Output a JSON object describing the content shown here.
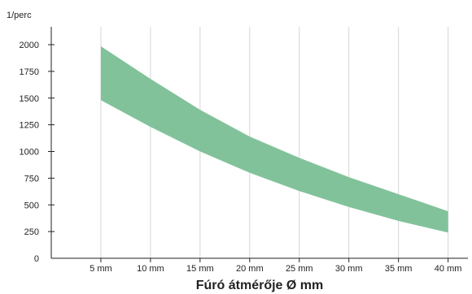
{
  "chart_data": {
    "type": "area",
    "title": "",
    "xlabel": "Fúró átmérője Ø mm",
    "ylabel": "1/perc",
    "x_categories": [
      "5 mm",
      "10 mm",
      "15 mm",
      "20 mm",
      "25 mm",
      "30 mm",
      "35 mm",
      "40 mm"
    ],
    "x_values": [
      5,
      10,
      15,
      20,
      25,
      30,
      35,
      40
    ],
    "xlim": [
      0,
      42
    ],
    "ylim": [
      0,
      2000
    ],
    "y_ticks": [
      0,
      250,
      500,
      750,
      1000,
      1250,
      1500,
      1750,
      2000
    ],
    "y_tick_labels": [
      "0",
      "250",
      "500",
      "750",
      "1000",
      "1250",
      "1500",
      "1750",
      "2000"
    ],
    "series": [
      {
        "role": "upper",
        "values": [
          1985,
          1680,
          1390,
          1140,
          940,
          760,
          600,
          440
        ]
      },
      {
        "role": "lower",
        "values": [
          1480,
          1230,
          1000,
          800,
          630,
          480,
          350,
          240
        ]
      }
    ],
    "band_color": "#82c29a",
    "grid": true,
    "grid_color": "#d6d6d6",
    "legend": "none"
  }
}
